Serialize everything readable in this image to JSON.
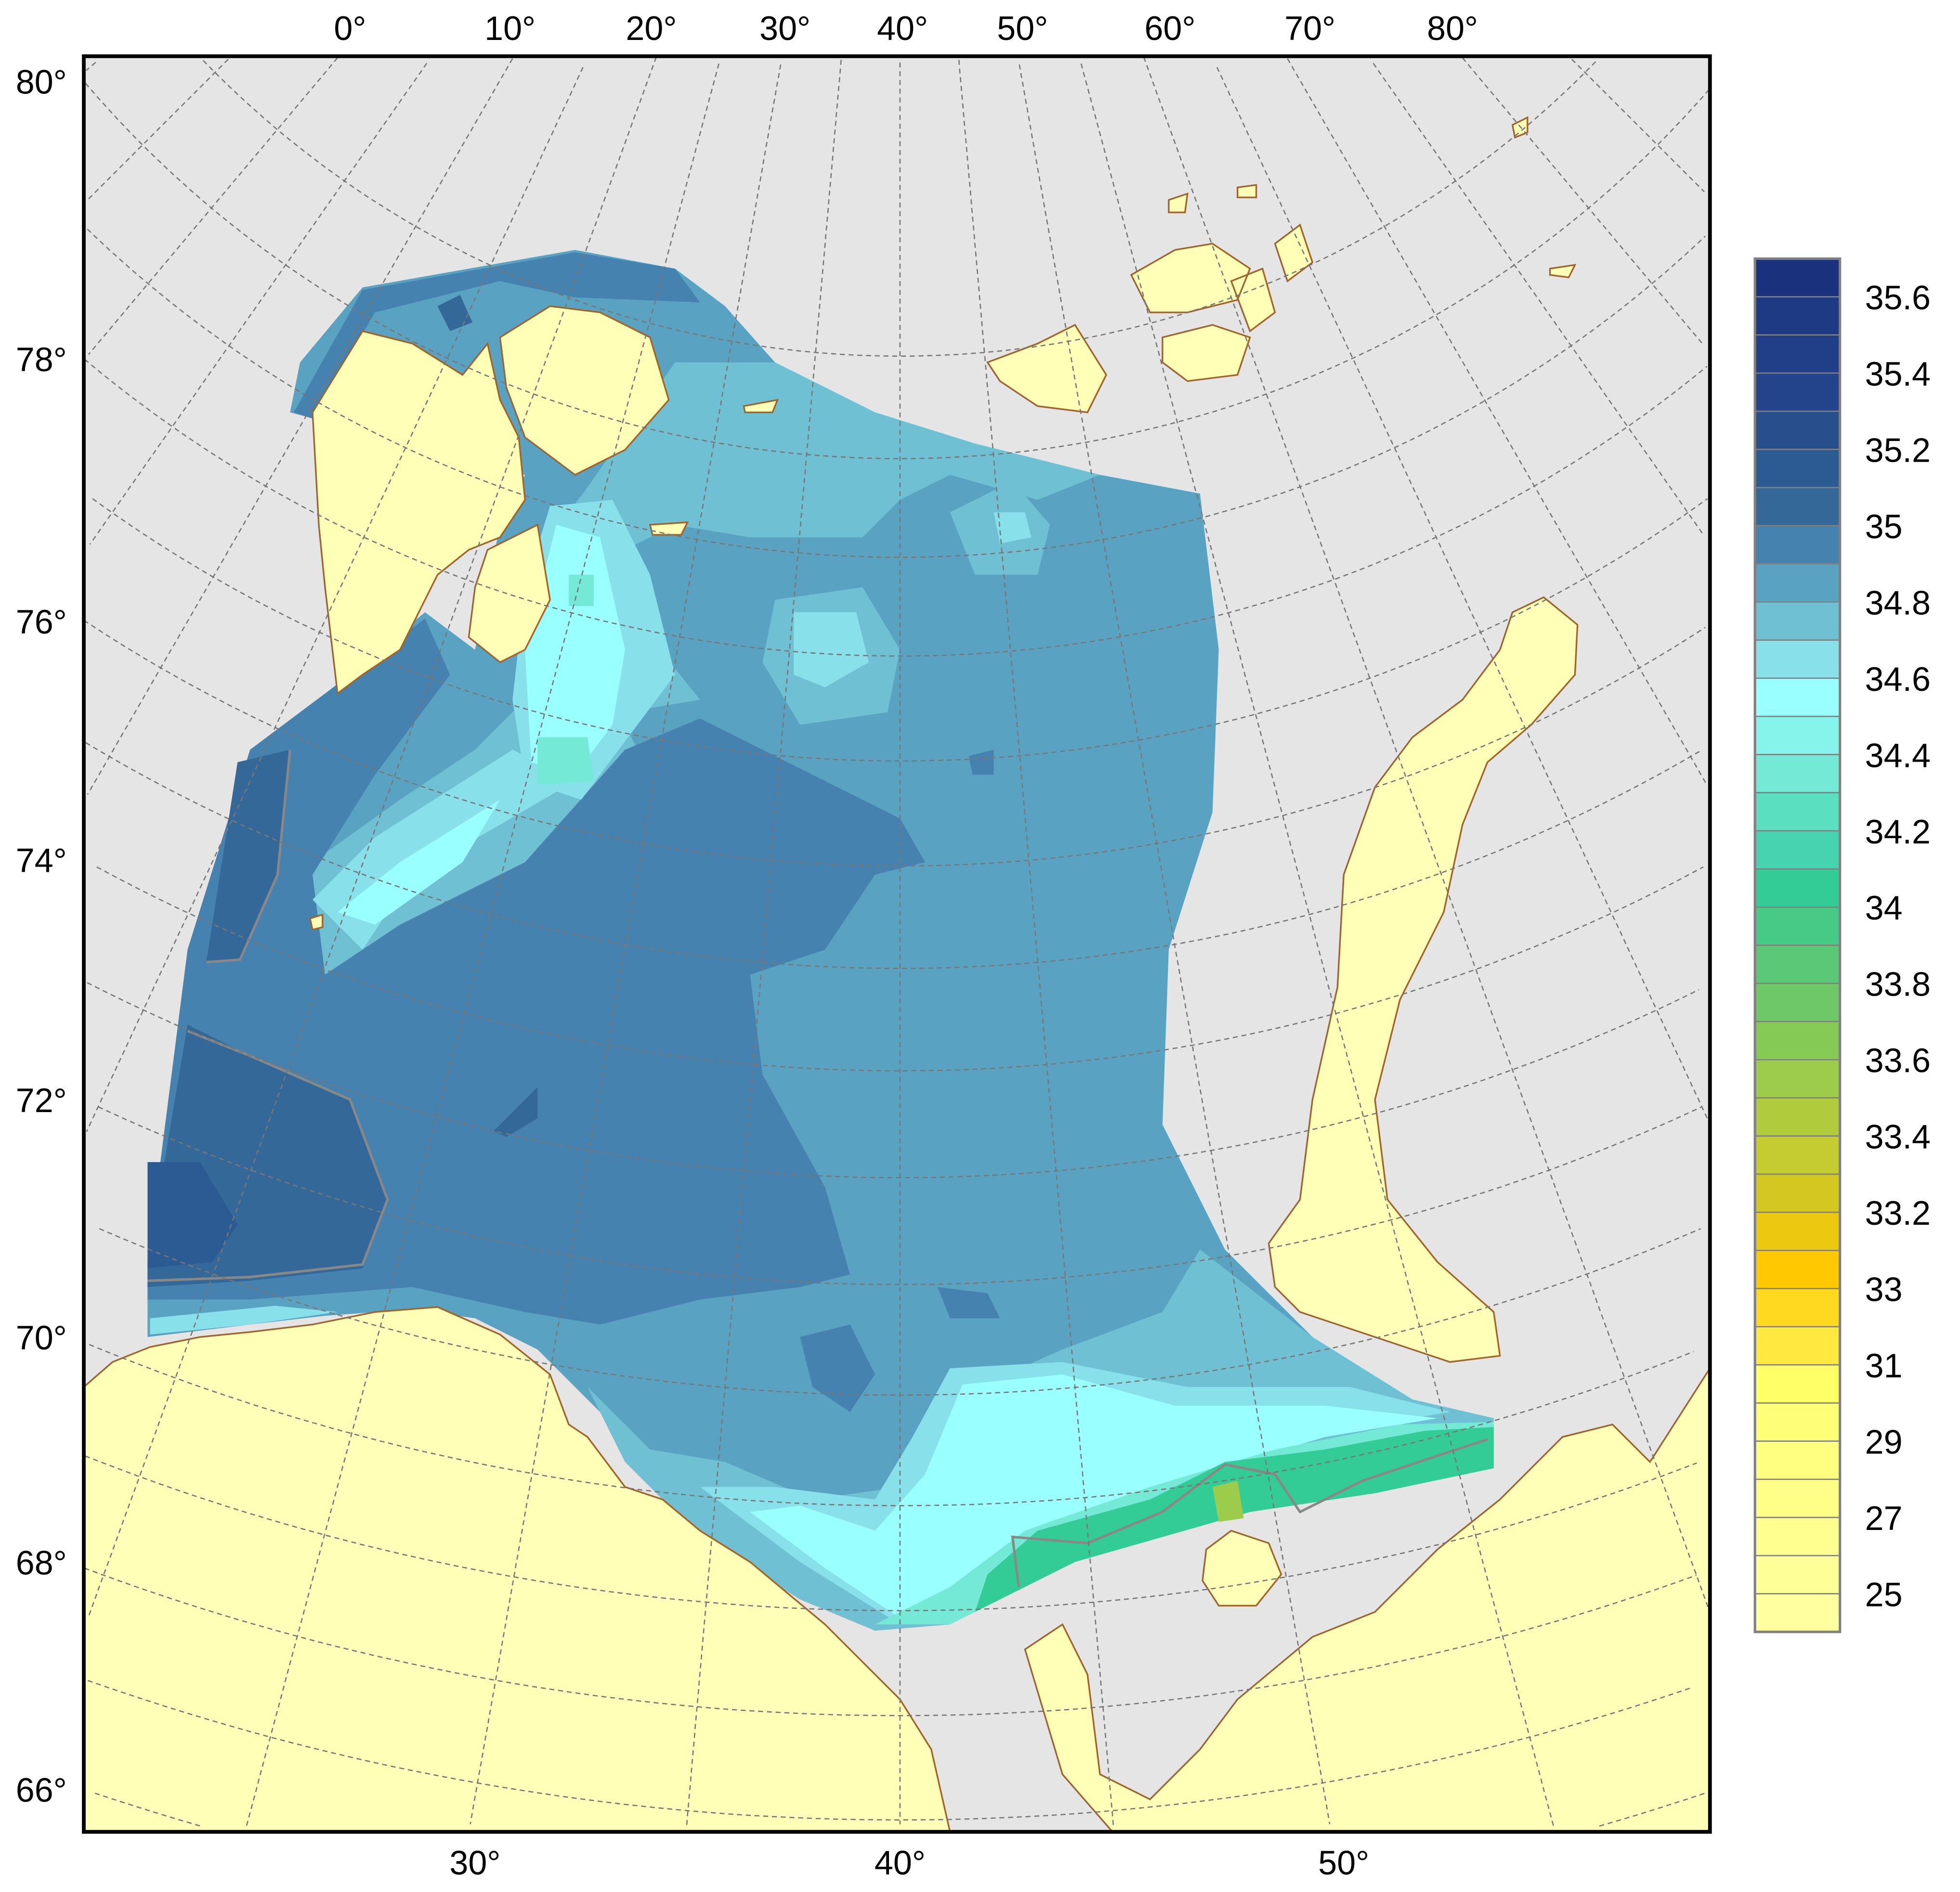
{
  "map": {
    "background_color": "#e5e5e5",
    "land_color": "#ffffb8",
    "coast_color": "#a0642d",
    "top_longitude_labels": [
      "0°",
      "10°",
      "20°",
      "30°",
      "40°",
      "50°",
      "60°",
      "70°",
      "80°"
    ],
    "bottom_longitude_labels": [
      "30°",
      "40°",
      "50°"
    ],
    "latitude_labels": [
      "80°",
      "78°",
      "76°",
      "74°",
      "72°",
      "70°",
      "68°",
      "66°"
    ]
  },
  "colorbar": {
    "labels": [
      "35.6",
      "35.4",
      "35.2",
      "35",
      "34.8",
      "34.6",
      "34.4",
      "34.2",
      "34",
      "33.8",
      "33.6",
      "33.4",
      "33.2",
      "33",
      "31",
      "29",
      "27",
      "25"
    ],
    "colors": [
      "#1a327e",
      "#1e3a84",
      "#203f88",
      "#23448a",
      "#284f8c",
      "#2c5a92",
      "#336898",
      "#4682b0",
      "#5aa2c2",
      "#70c0d4",
      "#88e0ea",
      "#99ffff",
      "#86f4ea",
      "#74ead6",
      "#5ae0c0",
      "#46d4b0",
      "#34cc96",
      "#46ca86",
      "#5ac874",
      "#6ec868",
      "#86ca56",
      "#9ccc4c",
      "#b0cc3c",
      "#c4cc30",
      "#d4c820",
      "#ecc810",
      "#ffc800",
      "#ffd820",
      "#ffe840",
      "#ffff66",
      "#ffff77",
      "#ffff80",
      "#ffff88",
      "#ffff90",
      "#ffff98",
      "#ffffa0"
    ]
  }
}
